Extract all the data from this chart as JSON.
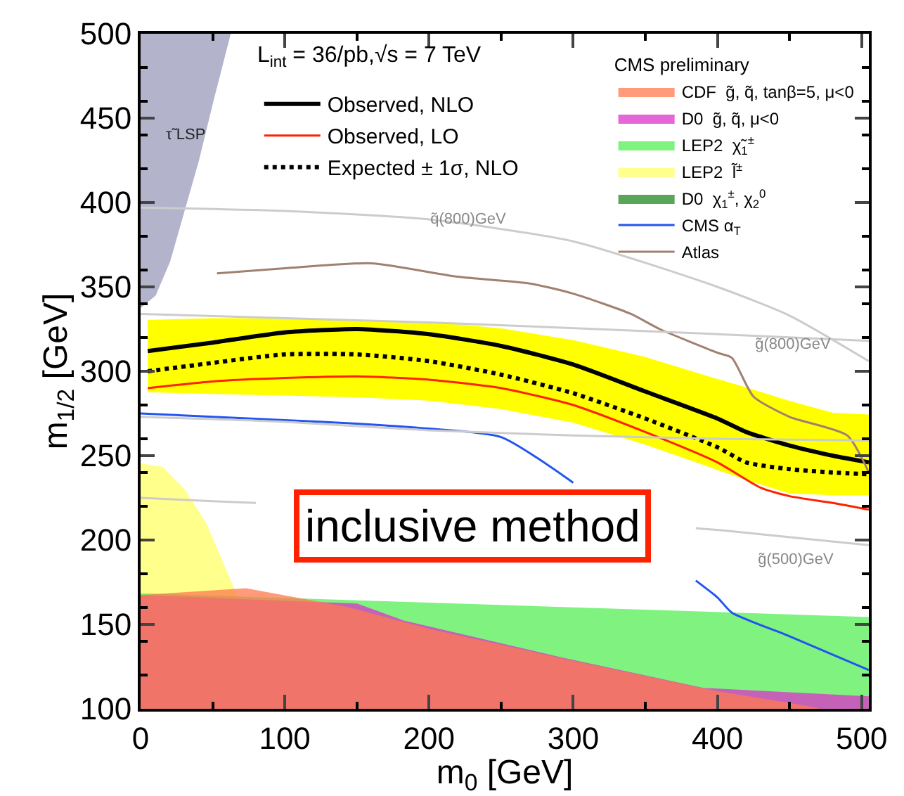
{
  "chart_data": {
    "type": "line",
    "xlabel": "m$_{0}$ [GeV]",
    "ylabel": "m$_{1/2}$ [GeV]",
    "xlim": [
      0,
      505
    ],
    "ylim": [
      100,
      500
    ],
    "xticks": [
      0,
      100,
      200,
      300,
      400,
      500
    ],
    "yticks": [
      100,
      150,
      200,
      250,
      300,
      350,
      400,
      450,
      500
    ],
    "legend": "top right",
    "legend_title": "CMS preliminary",
    "series": [
      {
        "name": "Observed, NLO",
        "color": "#000000",
        "x": [
          5,
          50,
          100,
          150,
          200,
          250,
          300,
          350,
          400,
          420,
          450,
          480,
          505
        ],
        "values": [
          312,
          317,
          323,
          325,
          322,
          315,
          304,
          288,
          272,
          264,
          256,
          250,
          246
        ]
      },
      {
        "name": "Observed, LO",
        "color": "#ff2200",
        "x": [
          5,
          50,
          100,
          150,
          200,
          250,
          300,
          350,
          400,
          430,
          450,
          480,
          505
        ],
        "values": [
          290,
          294,
          296,
          297,
          295,
          290,
          280,
          264,
          246,
          231,
          226,
          222,
          218
        ]
      },
      {
        "name": "Expected ± 1σ, NLO",
        "line_style": "dotted",
        "color": "#000000",
        "x": [
          5,
          50,
          100,
          150,
          200,
          250,
          300,
          350,
          400,
          420,
          450,
          480,
          505
        ],
        "values": [
          300,
          305,
          310,
          310,
          306,
          298,
          287,
          272,
          255,
          246,
          242,
          240,
          239
        ]
      },
      {
        "name": "CDF  g̃, q̃, tanβ=5, μ<0",
        "type": "area",
        "color": "#ff7a50",
        "x": [
          0,
          73,
          143,
          200,
          300,
          400,
          450,
          470,
          0
        ],
        "values": [
          167,
          171,
          160,
          147,
          128,
          110,
          103,
          100,
          100
        ]
      },
      {
        "name": "D0  g̃, q̃, μ<0",
        "type": "area",
        "color": "#dd33cc",
        "x": [
          0,
          88,
          150,
          182,
          292,
          390,
          505,
          505,
          0
        ],
        "values": [
          167,
          164,
          162,
          152,
          130,
          112,
          107,
          100,
          100
        ]
      },
      {
        "name": "LEP2  χ̃$_{1}$$^{±}$",
        "type": "area",
        "color": "#55ee55",
        "x": [
          0,
          505,
          505,
          0
        ],
        "values": [
          168,
          154,
          100,
          100
        ]
      },
      {
        "name": "LEP2  l̃$^{±}$",
        "type": "area",
        "color": "#ffff66",
        "x": [
          0,
          15,
          30,
          45,
          55,
          65,
          72,
          72,
          0
        ],
        "values": [
          245,
          243,
          230,
          210,
          190,
          170,
          160,
          100,
          100
        ]
      },
      {
        "name": "D0  χ$_{1}$$^{±}$, χ$_{2}$$^{0}$",
        "type": "area",
        "color": "#228822"
      },
      {
        "name": "CMS α$_{T}$",
        "color": "#2255ee",
        "x": [
          0,
          100,
          150,
          200,
          250,
          300,
          340,
          385,
          400,
          410,
          450,
          505
        ],
        "values": [
          275,
          271,
          269,
          266,
          261,
          234,
          null,
          176,
          166,
          157,
          143,
          123
        ]
      },
      {
        "name": "Atlas",
        "color": "#a08070",
        "x": [
          53,
          100,
          160,
          220,
          270,
          300,
          340,
          360,
          400,
          410,
          425,
          450,
          490,
          505
        ],
        "values": [
          358,
          361,
          364,
          356,
          352,
          346,
          334,
          325,
          311,
          308,
          285,
          273,
          262,
          240
        ]
      },
      {
        "type": "area",
        "color": "#ffff00",
        "x": [
          5,
          50,
          100,
          150,
          200,
          250,
          300,
          350,
          400,
          420,
          450,
          480,
          505,
          505,
          480,
          450,
          420,
          400,
          350,
          300,
          250,
          200,
          150,
          100,
          50,
          5
        ],
        "values": [
          330,
          331,
          331,
          330,
          329,
          325,
          318,
          308,
          295,
          290,
          282,
          275,
          274,
          227,
          227,
          228,
          236,
          242,
          257,
          270,
          278,
          283,
          285,
          286,
          287,
          288
        ]
      },
      {
        "type": "area",
        "color": "#b3b3cc",
        "x": [
          0,
          0,
          10,
          20,
          30,
          40,
          50,
          62,
          0
        ],
        "values": [
          500,
          338,
          345,
          365,
          395,
          425,
          460,
          500,
          500
        ]
      },
      {
        "color": "#cccccc",
        "x": [
          0,
          100,
          200,
          300,
          400,
          450,
          505
        ],
        "values": [
          397,
          395,
          390,
          377,
          350,
          333,
          306
        ]
      },
      {
        "color": "#cccccc",
        "x": [
          0,
          200,
          400,
          505
        ],
        "values": [
          334,
          329,
          322,
          318
        ]
      },
      {
        "color": "#cccccc",
        "x": [
          0,
          50,
          80,
          200,
          385,
          400,
          505
        ],
        "values": [
          225,
          223,
          222,
          null,
          207,
          206,
          197
        ]
      },
      {
        "color": "#cccccc",
        "x": [
          0,
          100,
          200,
          300,
          400,
          505
        ],
        "values": [
          273,
          270,
          265,
          262,
          260,
          259
        ]
      }
    ],
    "annotations": [
      "L$_{int}$ = 36/pb,√s = 7 TeV",
      "inclusive method",
      "τ̃ LSP",
      {
        "text": "q̃(800)GeV",
        "x": 228,
        "y": 390
      },
      {
        "text": "g̃(800)GeV",
        "x": 453,
        "y": 316
      },
      "g̃(500)GeV"
    ]
  }
}
